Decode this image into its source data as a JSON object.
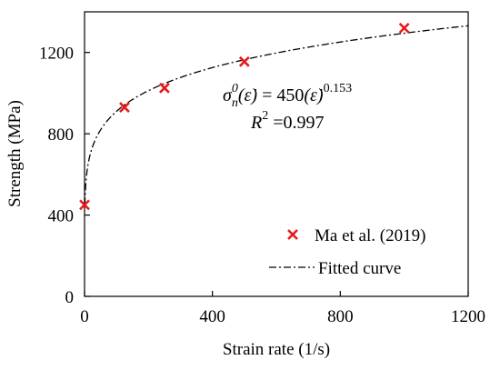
{
  "chart_data": {
    "type": "scatter",
    "xlabel": "Strain rate (1/s)",
    "ylabel": "Strength (MPa)",
    "xlim": [
      0,
      1200
    ],
    "ylim": [
      0,
      1400
    ],
    "x_ticks": [
      0,
      400,
      800,
      1200
    ],
    "y_ticks": [
      0,
      400,
      800,
      1200
    ],
    "x_tick_labels": [
      "0",
      "400",
      "800",
      "1200"
    ],
    "y_tick_labels": [
      "0",
      "400",
      "800",
      "1200"
    ],
    "grid": false,
    "legend_position": "bottom-right",
    "series": [
      {
        "name": "Ma et al. (2019)",
        "kind": "scatter",
        "marker": "x",
        "color": "#e8191c",
        "x": [
          0,
          125,
          250,
          500,
          1000
        ],
        "y": [
          450,
          930,
          1025,
          1155,
          1320
        ]
      },
      {
        "name": "Fitted curve",
        "kind": "line",
        "style": "dash-dot",
        "color": "#000000",
        "formula_coefficient": 450,
        "formula_exponent": 0.153
      }
    ],
    "annotations": {
      "equation_lhs": "σ",
      "equation_sub": "n",
      "equation_sup": "0",
      "equation_arg": "(ε̇)",
      "equation_eq": " = 450",
      "equation_exp": "0.153",
      "r2_label": "R",
      "r2_sup": "2",
      "r2_value": " =0.997"
    }
  }
}
